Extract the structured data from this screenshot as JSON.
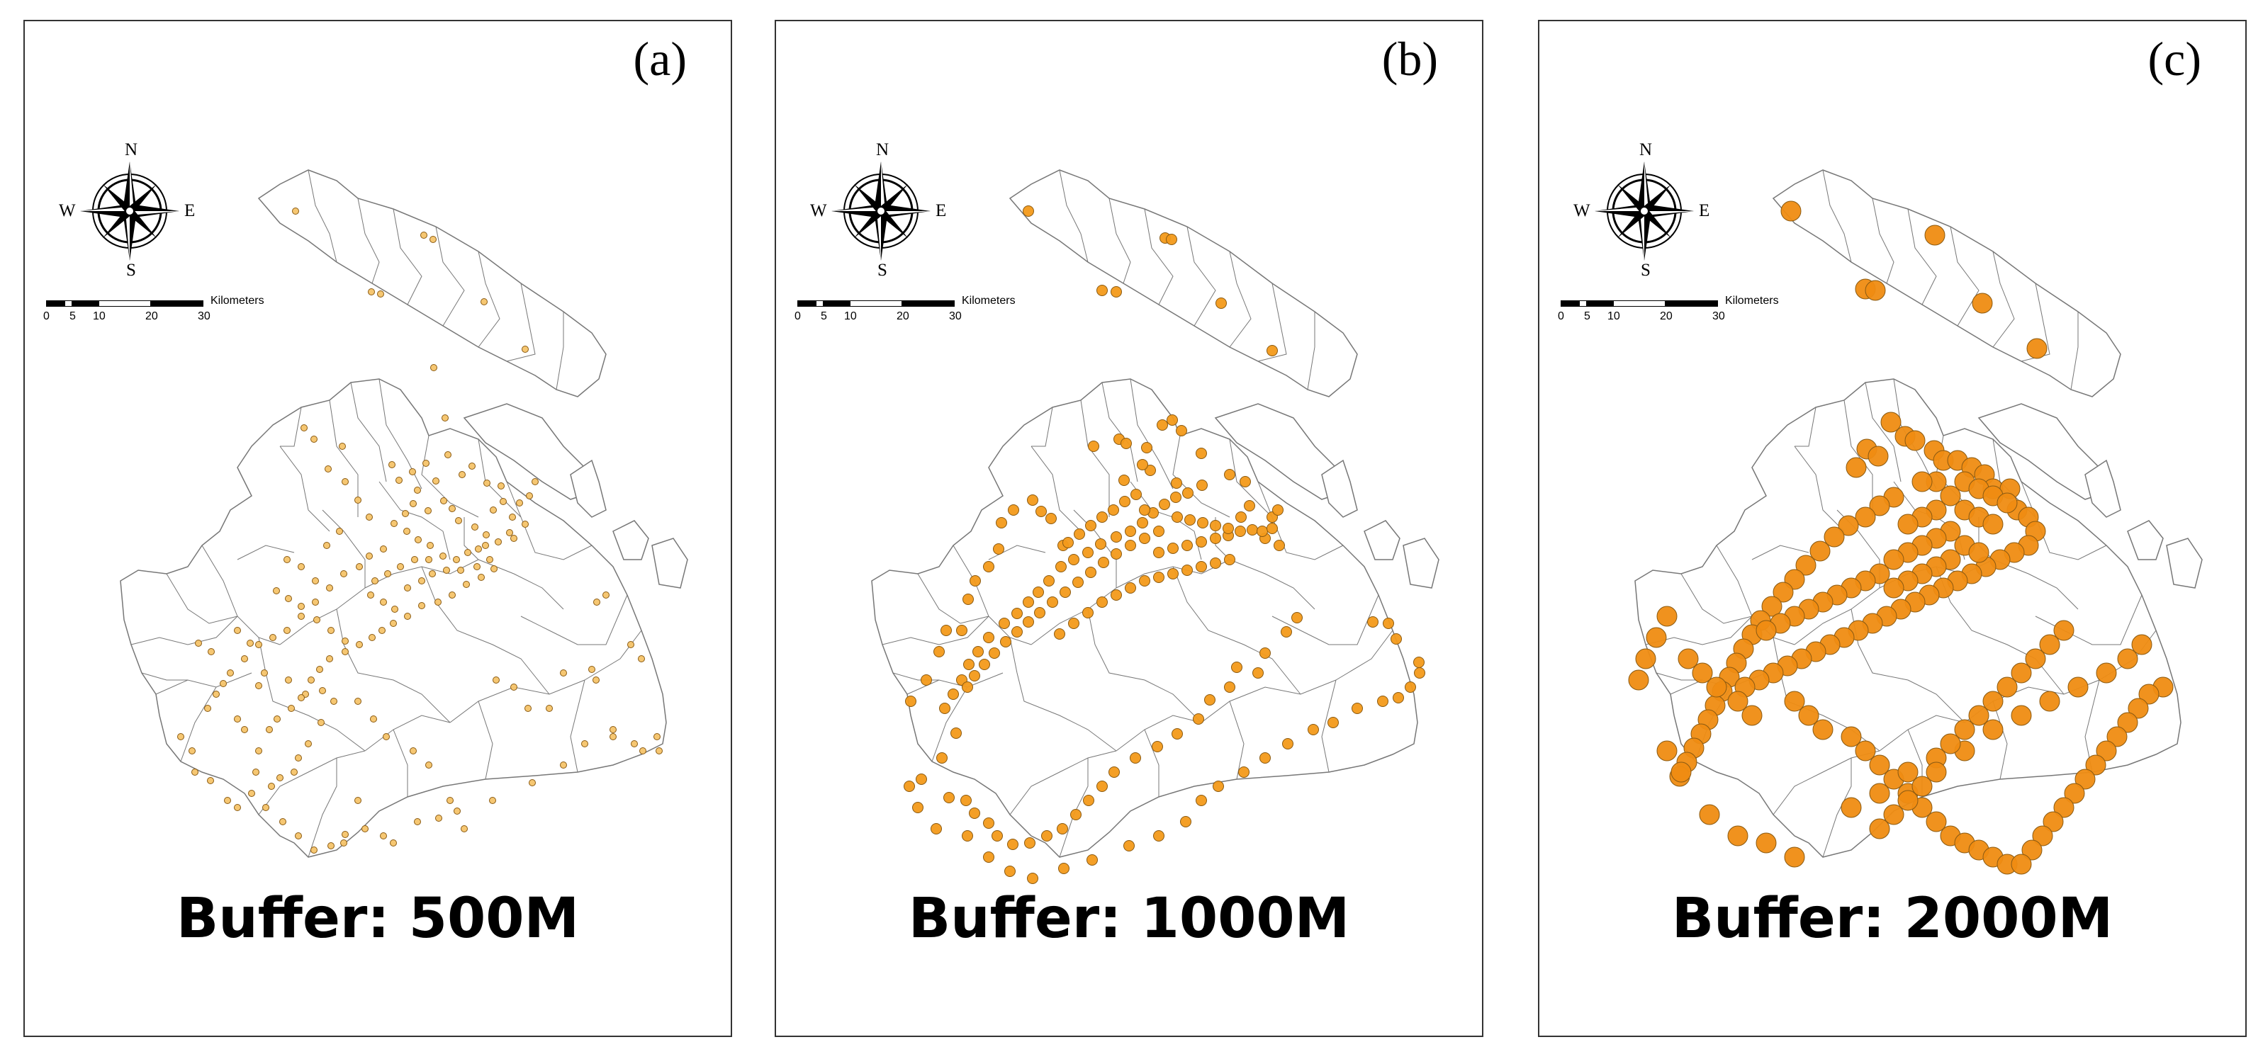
{
  "figure": {
    "panels": [
      {
        "letter": "(a)",
        "title": "Buffer: 500M",
        "buffer_m": 500
      },
      {
        "letter": "(b)",
        "title": "Buffer: 1000M",
        "buffer_m": 1000
      },
      {
        "letter": "(c)",
        "title": "Buffer: 2000M",
        "buffer_m": 2000
      }
    ],
    "compass": {
      "n": "N",
      "s": "S",
      "e": "E",
      "w": "W",
      "icon": "north-arrow-compass-rose-icon"
    },
    "scale_bar": {
      "ticks": [
        "0",
        "5",
        "10",
        "20",
        "30"
      ],
      "unit": "Kilometers"
    },
    "colors": {
      "point_fill_small": "#f5c46a",
      "point_fill": "#f39a1a",
      "point_fill_large": "#ef8c12",
      "point_stroke": "#8a5a12",
      "boundary": "#777777"
    }
  }
}
